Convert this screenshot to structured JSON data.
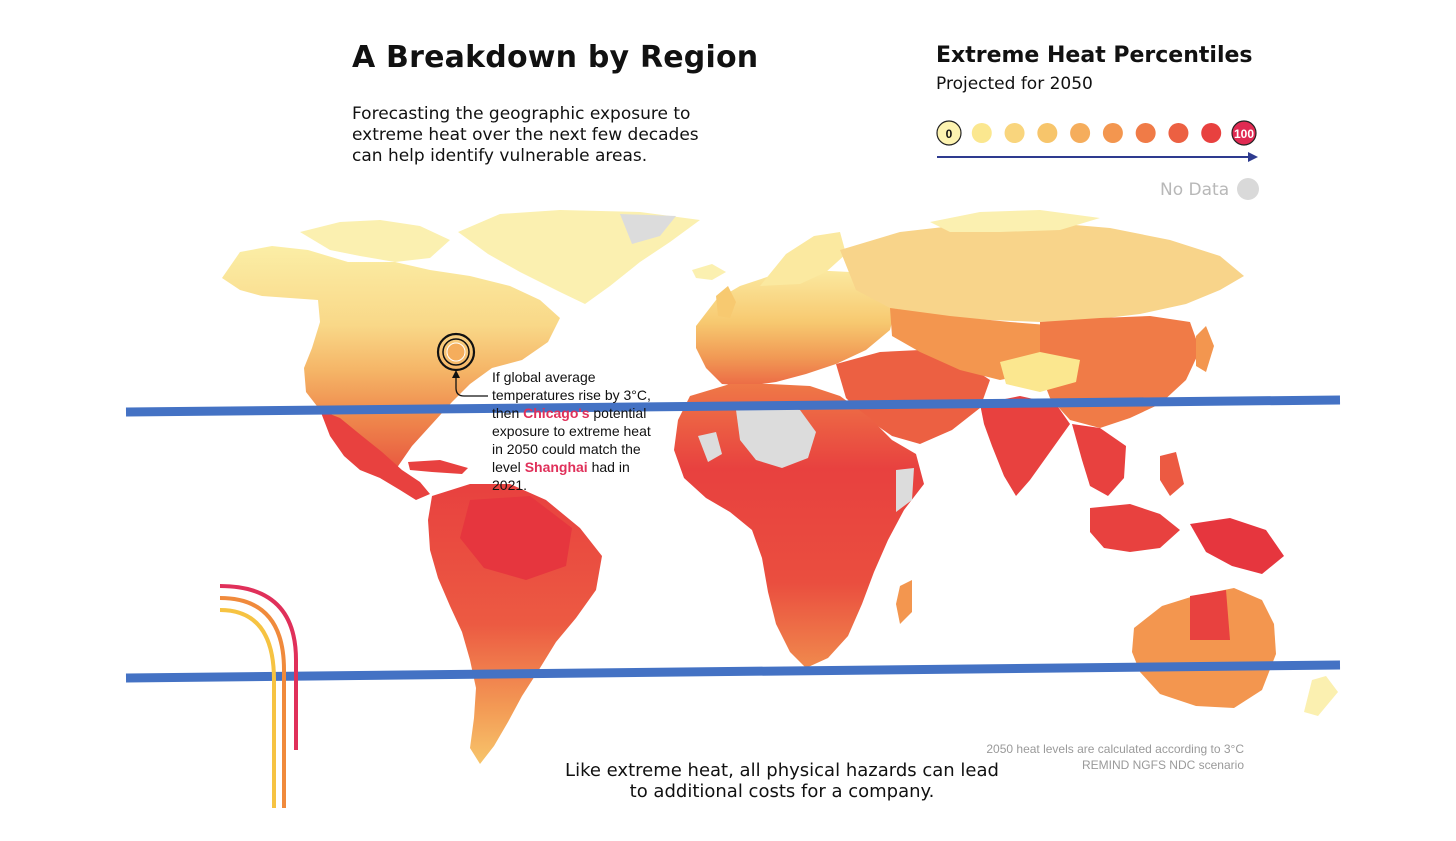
{
  "header": {
    "title": "A Breakdown by Region",
    "intro": "Forecasting the geographic exposure to extreme heat over the next few decades can help identify vulnerable areas."
  },
  "legend": {
    "title": "Extreme Heat Percentiles",
    "subtitle": "Projected for 2050",
    "min_label": "0",
    "max_label": "100",
    "no_data_label": "No Data",
    "swatch_colors": [
      "#fdf3b0",
      "#fbe78f",
      "#f9d57d",
      "#f7c56b",
      "#f5ad5c",
      "#f3964f",
      "#f07b47",
      "#ec6042",
      "#e8413f",
      "#e02a52"
    ],
    "arrow_color": "#2e3b8f",
    "no_data_color": "#d9d9d9"
  },
  "annotation": {
    "line1": "If global average",
    "line2": "temperatures rise by 3°C,",
    "line3_pre": "then ",
    "city_a": "Chicago's",
    "line3_post": " potential",
    "line4": "exposure to extreme heat",
    "line5": "in 2050 could match the",
    "line6_pre": "level ",
    "city_b": "Shanghai",
    "line6_post": " had in 2021.",
    "highlight_color": "#e0305a"
  },
  "footnote": {
    "line1": "2050 heat levels are calculated according to 3°C",
    "line2": "REMIND NGFS NDC scenario"
  },
  "closing": "Like extreme heat, all physical hazards can lead to additional costs for a company.",
  "overlay": {
    "line_color": "#4472c4",
    "arc_colors": [
      "#e0305a",
      "#f08a3c",
      "#f6c342"
    ]
  }
}
